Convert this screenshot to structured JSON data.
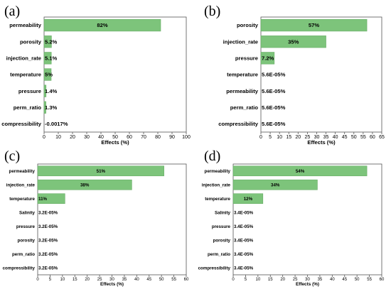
{
  "chart_data": [
    {
      "panel_label": "(a)",
      "type": "bar",
      "orientation": "horizontal",
      "categories": [
        "permeability",
        "porosity",
        "injection_rate",
        "temperature",
        "pressure",
        "perm_ratio",
        "compressibility"
      ],
      "values": [
        82,
        5.2,
        5.1,
        5,
        1.4,
        1.3,
        -0.0017
      ],
      "value_labels": [
        "82%",
        "5.2%",
        "5.1%",
        "5%",
        "1.4%",
        "1.3%",
        "-0.0017%"
      ],
      "xlabel": "Effects (%)",
      "xlim": [
        0,
        100
      ],
      "xticks": [
        0,
        10,
        20,
        30,
        40,
        50,
        60,
        70,
        80,
        90,
        100
      ],
      "bar_color": "#7dc47b"
    },
    {
      "panel_label": "(b)",
      "type": "bar",
      "orientation": "horizontal",
      "categories": [
        "porosity",
        "injection_rate",
        "pressure",
        "temperature",
        "permeability",
        "perm_ratio",
        "compressibility"
      ],
      "values": [
        57,
        35,
        7.2,
        5.6e-05,
        5.6e-05,
        5.6e-05,
        5.6e-05
      ],
      "value_labels": [
        "57%",
        "35%",
        "7.2%",
        "5.6E-05%",
        "5.6E-05%",
        "5.6E-05%",
        "5.6E-05%"
      ],
      "xlabel": "Effects (%)",
      "xlim": [
        0,
        65
      ],
      "xticks": [
        0,
        5,
        10,
        15,
        20,
        25,
        30,
        35,
        40,
        45,
        50,
        55,
        60,
        65
      ],
      "bar_color": "#7dc47b"
    },
    {
      "panel_label": "(c)",
      "type": "bar",
      "orientation": "horizontal",
      "categories": [
        "permeability",
        "injection_rate",
        "temperature",
        "Salinity",
        "pressure",
        "porosity",
        "perm_ratio",
        "compressibility"
      ],
      "values": [
        51,
        38,
        11,
        3.2e-05,
        3.2e-05,
        3.2e-05,
        3.2e-05,
        3.2e-05
      ],
      "value_labels": [
        "51%",
        "38%",
        "11%",
        "3.2E-05%",
        "3.2E-05%",
        "3.2E-05%",
        "3.2E-05%",
        "3.2E-05%"
      ],
      "xlabel": "Effects (%)",
      "xlim": [
        0,
        60
      ],
      "xticks": [
        0,
        5,
        10,
        15,
        20,
        25,
        30,
        35,
        40,
        45,
        50,
        55,
        60
      ],
      "bar_color": "#7dc47b"
    },
    {
      "panel_label": "(d)",
      "type": "bar",
      "orientation": "horizontal",
      "categories": [
        "permeability",
        "injection_rate",
        "temperature",
        "Salinity",
        "pressure",
        "porosity",
        "perm_ratio",
        "compressibility"
      ],
      "values": [
        54,
        34,
        12,
        3.4e-05,
        3.4e-05,
        3.4e-05,
        3.4e-05,
        3.4e-05
      ],
      "value_labels": [
        "54%",
        "34%",
        "12%",
        "3.4E-05%",
        "3.4E-05%",
        "3.4E-05%",
        "3.4E-05%",
        "3.4E-05%"
      ],
      "xlabel": "Effects (%)",
      "xlim": [
        0,
        60
      ],
      "xticks": [
        0,
        5,
        10,
        15,
        20,
        25,
        30,
        35,
        40,
        45,
        50,
        55,
        60
      ],
      "bar_color": "#7dc47b"
    }
  ]
}
